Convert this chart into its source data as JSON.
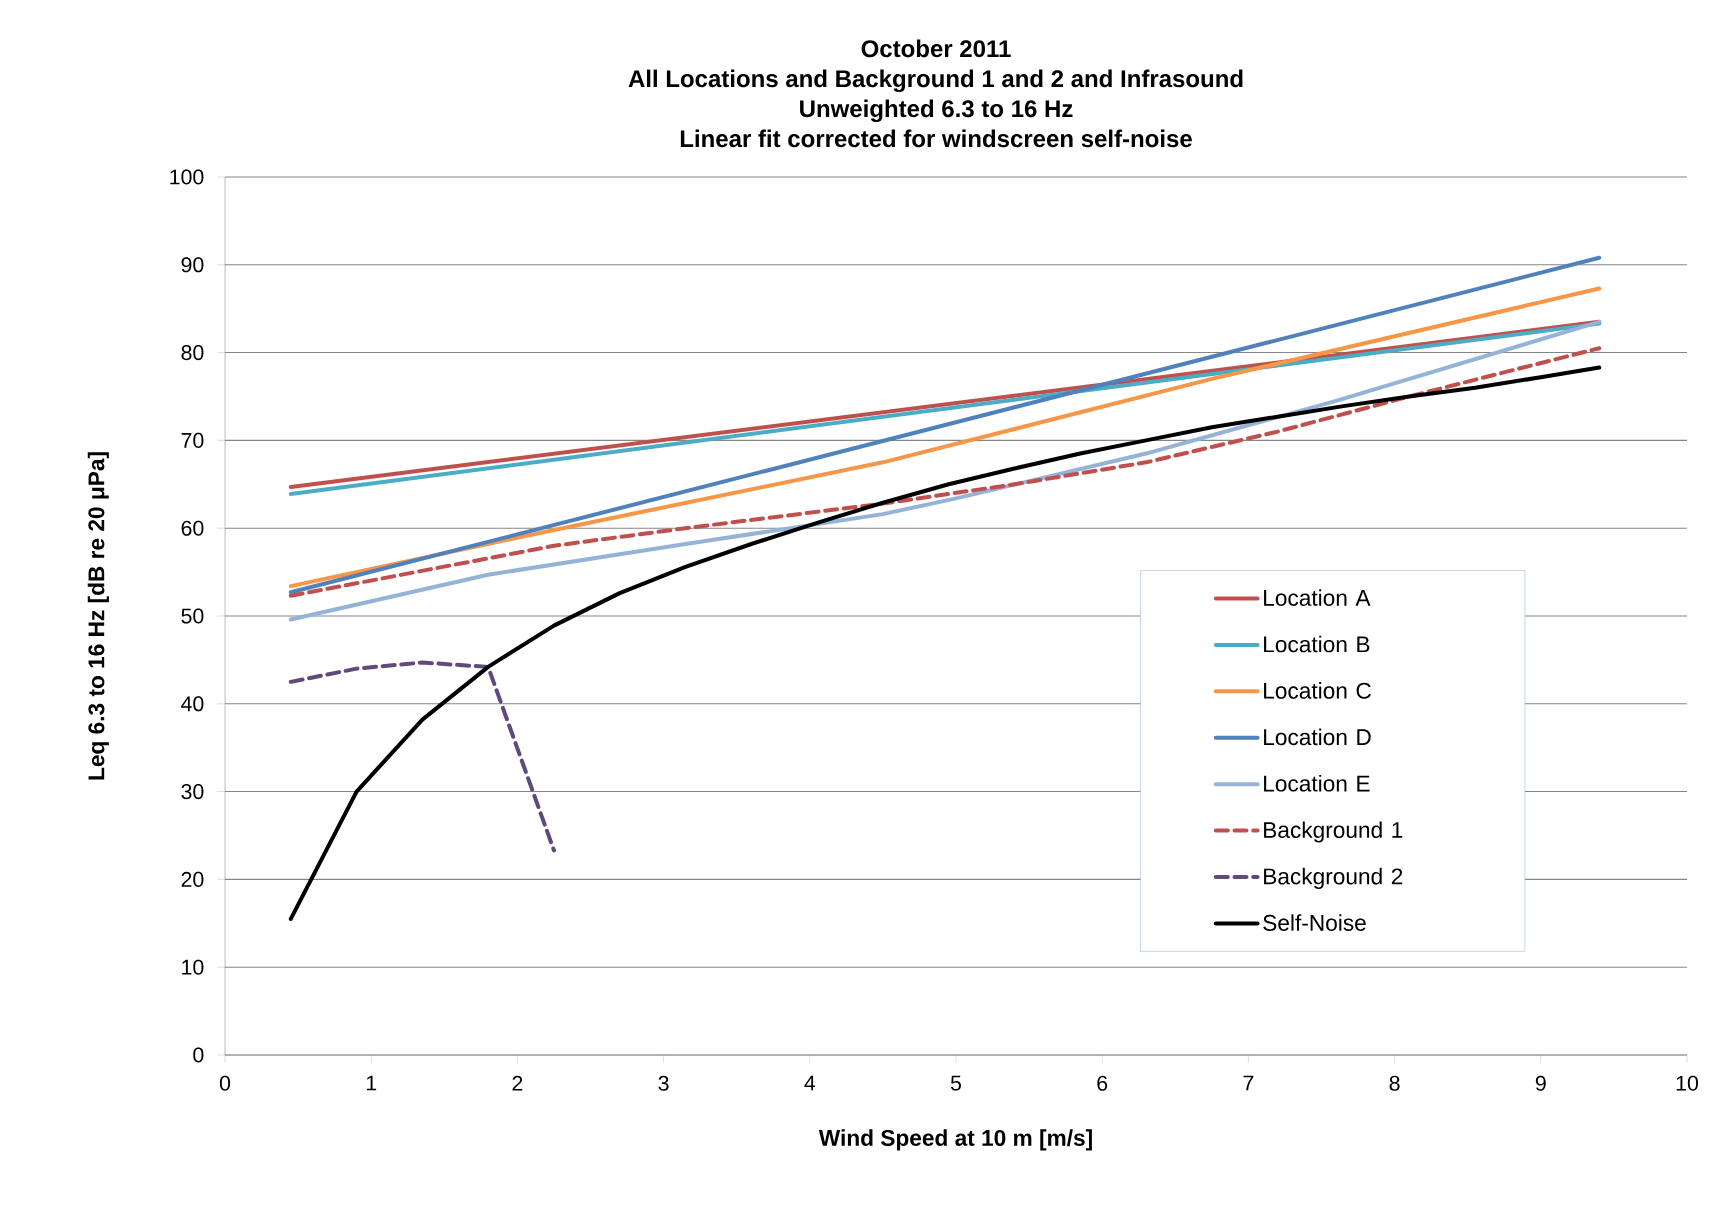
{
  "chart_data": {
    "type": "line",
    "title": "October 2011",
    "subtitle": "All Locations and Background 1 and 2 and Infrasound",
    "annotations": [
      "Unweighted 6.3 to 16 Hz",
      "Linear fit corrected for windscreen self-noise"
    ],
    "xlabel": "Wind Speed at 10 m [m/s]",
    "ylabel": "Leq 6.3 to 16 Hz [dB re 20 μPa]",
    "xlim": [
      0,
      10
    ],
    "ylim": [
      0,
      100
    ],
    "xticks": [
      0,
      1,
      2,
      3,
      4,
      5,
      6,
      7,
      8,
      9,
      10
    ],
    "yticks": [
      0,
      10,
      20,
      30,
      40,
      50,
      60,
      70,
      80,
      90,
      100
    ],
    "grid": "y",
    "legend": "bottom right",
    "marker": "none",
    "series": [
      {
        "name": "Location A",
        "color": "#c0504d",
        "line_style": "solid",
        "x": [
          0.45,
          9.4
        ],
        "values": [
          64.7,
          83.5
        ]
      },
      {
        "name": "Location B",
        "color": "#4bacc6",
        "line_style": "solid",
        "x": [
          0.45,
          9.4
        ],
        "values": [
          63.9,
          83.3
        ]
      },
      {
        "name": "Location C",
        "color": "#f79646",
        "line_style": "solid",
        "x": [
          0.45,
          2.25,
          4.5,
          6.75,
          9.4
        ],
        "values": [
          53.4,
          59.8,
          67.5,
          77,
          87.3
        ]
      },
      {
        "name": "Location D",
        "color": "#4f81bd",
        "line_style": "solid",
        "x": [
          0.45,
          9.4
        ],
        "values": [
          52.7,
          90.8
        ]
      },
      {
        "name": "Location E",
        "color": "#95b3d7",
        "line_style": "solid",
        "x": [
          0.45,
          1.8,
          3.15,
          4.5,
          5.0,
          6.3,
          7.6,
          9.4
        ],
        "values": [
          49.6,
          54.7,
          58.2,
          61.6,
          63.4,
          68.5,
          74.5,
          83.5
        ]
      },
      {
        "name": "Background 1",
        "color": "#c0504d",
        "line_style": "dashed",
        "x": [
          0.45,
          2.25,
          3.15,
          4.5,
          5.4,
          6.3,
          7.2,
          8.1,
          9.4
        ],
        "values": [
          52.3,
          58,
          60,
          62.8,
          65,
          67.5,
          71,
          75,
          80.5
        ]
      },
      {
        "name": "Background 2",
        "color": "#604a7b",
        "line_style": "dashed",
        "x": [
          0.45,
          0.9,
          1.35,
          1.8,
          2.25
        ],
        "values": [
          42.5,
          44,
          44.7,
          44.2,
          23.3
        ]
      },
      {
        "name": "Self-Noise",
        "color": "#000000",
        "line_style": "solid",
        "x": [
          0.45,
          0.9,
          1.35,
          1.8,
          2.25,
          2.7,
          3.15,
          3.6,
          4.05,
          4.5,
          4.95,
          5.4,
          5.85,
          6.3,
          6.75,
          7.2,
          7.65,
          8.1,
          8.55,
          9.0,
          9.4
        ],
        "values": [
          15.5,
          30,
          38.2,
          44.2,
          48.9,
          52.6,
          55.6,
          58.2,
          60.6,
          62.9,
          65,
          66.8,
          68.5,
          70,
          71.5,
          72.7,
          73.9,
          75,
          76,
          77.2,
          78.3
        ]
      }
    ]
  }
}
